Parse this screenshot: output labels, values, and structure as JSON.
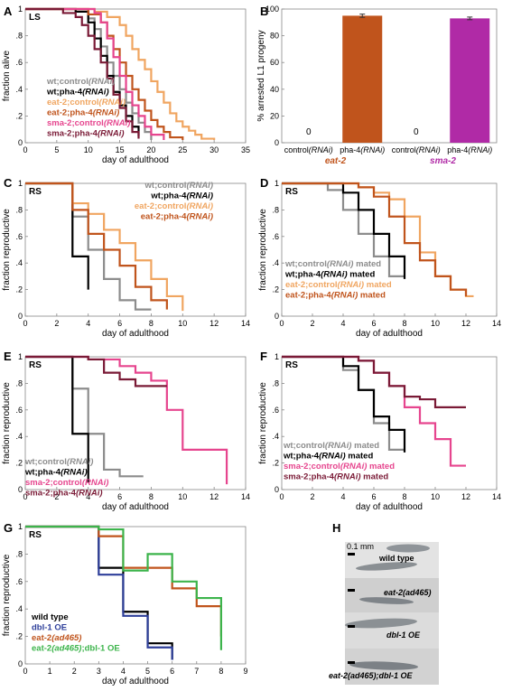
{
  "colors": {
    "wt_control": "#8c8c8c",
    "wt_pha4": "#000000",
    "eat2_control": "#f0a560",
    "eat2_pha4": "#c0541c",
    "sma2_control": "#e6458e",
    "sma2_pha4": "#7a1a36",
    "dbl1": "#2e3f9a",
    "eat2_dbl1": "#3cb44b"
  },
  "chart_data": [
    {
      "panel": "A",
      "type": "line",
      "tag": "LS",
      "xlabel": "day of adulthood",
      "ylabel": "fraction alive",
      "xlim": [
        0,
        35
      ],
      "ylim": [
        0,
        1
      ],
      "xticks": [
        "0",
        "5",
        "10",
        "15",
        "20",
        "25",
        "30",
        "35"
      ],
      "yticks": [
        "0",
        ".2",
        ".4",
        ".6",
        ".8",
        "1"
      ],
      "legend": [
        {
          "text": "wt;control(RNAi)",
          "color_key": "wt_control"
        },
        {
          "text": "wt;pha-4(RNAi)",
          "color_key": "wt_pha4"
        },
        {
          "text": "eat-2;control(RNAi)",
          "color_key": "eat2_control"
        },
        {
          "text": "eat-2;pha-4(RNAi)",
          "color_key": "eat2_pha4"
        },
        {
          "text": "sma-2;control(RNAi)",
          "color_key": "sma2_control"
        },
        {
          "text": "sma-2;pha-4(RNAi)",
          "color_key": "sma2_pha4"
        }
      ],
      "series": [
        {
          "color_key": "wt_control",
          "x": [
            0,
            8,
            10,
            11,
            12,
            13,
            14,
            15,
            16,
            17,
            18,
            19,
            20
          ],
          "y": [
            1,
            0.98,
            0.93,
            0.85,
            0.72,
            0.6,
            0.5,
            0.4,
            0.3,
            0.22,
            0.15,
            0.08,
            0.02
          ]
        },
        {
          "color_key": "wt_pha4",
          "x": [
            0,
            8,
            10,
            11,
            12,
            13,
            14,
            15,
            16,
            17,
            18
          ],
          "y": [
            1,
            0.98,
            0.9,
            0.78,
            0.65,
            0.5,
            0.38,
            0.28,
            0.2,
            0.12,
            0.05
          ]
        },
        {
          "color_key": "eat2_control",
          "x": [
            0,
            11,
            13,
            15,
            16,
            17,
            18,
            19,
            20,
            21,
            22,
            23,
            24,
            25,
            26,
            27,
            28,
            30
          ],
          "y": [
            1,
            0.98,
            0.94,
            0.88,
            0.8,
            0.7,
            0.62,
            0.55,
            0.46,
            0.38,
            0.3,
            0.22,
            0.16,
            0.12,
            0.09,
            0.06,
            0.03,
            0.02
          ]
        },
        {
          "color_key": "eat2_pha4",
          "x": [
            0,
            10,
            12,
            13,
            14,
            15,
            16,
            17,
            18,
            19,
            20,
            21,
            22,
            23,
            25
          ],
          "y": [
            1,
            0.96,
            0.9,
            0.8,
            0.7,
            0.6,
            0.5,
            0.4,
            0.32,
            0.24,
            0.17,
            0.12,
            0.08,
            0.04,
            0.02
          ]
        },
        {
          "color_key": "sma2_control",
          "x": [
            0,
            11,
            12,
            13,
            14,
            15,
            16,
            17,
            18,
            19,
            20,
            22
          ],
          "y": [
            1,
            0.97,
            0.9,
            0.78,
            0.64,
            0.5,
            0.38,
            0.28,
            0.2,
            0.12,
            0.06,
            0.02
          ]
        },
        {
          "color_key": "sma2_pha4",
          "x": [
            0,
            6,
            8,
            9,
            10,
            11,
            12,
            13,
            14,
            15,
            16,
            17,
            18
          ],
          "y": [
            1,
            0.97,
            0.94,
            0.88,
            0.8,
            0.7,
            0.6,
            0.48,
            0.36,
            0.26,
            0.16,
            0.08,
            0.03
          ]
        }
      ]
    },
    {
      "panel": "B",
      "type": "bar",
      "ylabel": "% arrested L1 progeny",
      "ylim": [
        0,
        100
      ],
      "yticks": [
        "0",
        "20",
        "40",
        "60",
        "80",
        "100"
      ],
      "categories": [
        "control(RNAi)",
        "pha-4(RNAi)",
        "control(RNAi)",
        "pha-4(RNAi)"
      ],
      "values": [
        0,
        95,
        0,
        93
      ],
      "errors": [
        0,
        1.2,
        0,
        1.0
      ],
      "zero_labels": [
        "0",
        "",
        "0",
        ""
      ],
      "bar_color_keys": [
        "eat2_pha4",
        "eat2_pha4",
        "sma2_control",
        "sma2_control"
      ],
      "groups": [
        {
          "label": "eat-2",
          "color": "#c0541c"
        },
        {
          "label": "sma-2",
          "color": "#b02aa6"
        }
      ],
      "bar_colors": [
        "#c0541c",
        "#c0541c",
        "#b02aa6",
        "#b02aa6"
      ]
    },
    {
      "panel": "C",
      "type": "line",
      "tag": "RS",
      "xlabel": "day of adulthood",
      "ylabel": "fraction reproductive",
      "xlim": [
        0,
        14
      ],
      "ylim": [
        0,
        1
      ],
      "xticks": [
        "0",
        "2",
        "4",
        "6",
        "8",
        "10",
        "12",
        "14"
      ],
      "yticks": [
        "0",
        ".2",
        ".4",
        ".6",
        ".8",
        "1"
      ],
      "legend": [
        {
          "text": "wt;control(RNAi)",
          "color_key": "wt_control"
        },
        {
          "text": "wt;pha-4(RNAi)",
          "color_key": "wt_pha4"
        },
        {
          "text": "eat-2;control(RNAi)",
          "color_key": "eat2_control"
        },
        {
          "text": "eat-2;pha-4(RNAi)",
          "color_key": "eat2_pha4"
        }
      ],
      "series": [
        {
          "color_key": "wt_control",
          "x": [
            0,
            3,
            4,
            5,
            6,
            7,
            8
          ],
          "y": [
            1,
            0.75,
            0.5,
            0.28,
            0.12,
            0.05,
            0.05
          ]
        },
        {
          "color_key": "wt_pha4",
          "x": [
            0,
            3,
            4
          ],
          "y": [
            1,
            0.45,
            0.2
          ]
        },
        {
          "color_key": "eat2_control",
          "x": [
            0,
            3,
            4,
            5,
            6,
            7,
            8,
            9,
            10
          ],
          "y": [
            1,
            0.85,
            0.77,
            0.65,
            0.55,
            0.42,
            0.28,
            0.15,
            0.04
          ]
        },
        {
          "color_key": "eat2_pha4",
          "x": [
            0,
            3,
            4,
            5,
            6,
            7,
            8,
            9
          ],
          "y": [
            1,
            0.8,
            0.62,
            0.5,
            0.38,
            0.22,
            0.12,
            0.05
          ]
        }
      ]
    },
    {
      "panel": "D",
      "type": "line",
      "tag": "RS",
      "xlabel": "day of adulthood",
      "ylabel": "fraction reproductive",
      "xlim": [
        0,
        14
      ],
      "ylim": [
        0,
        1
      ],
      "xticks": [
        "0",
        "2",
        "4",
        "6",
        "8",
        "10",
        "12",
        "14"
      ],
      "yticks": [
        "0",
        ".2",
        ".4",
        ".6",
        ".8",
        "1"
      ],
      "legend": [
        {
          "text": "wt;control(RNAi) mated",
          "color_key": "wt_control"
        },
        {
          "text": "wt;pha-4(RNAi) mated",
          "color_key": "wt_pha4"
        },
        {
          "text": "eat-2;control(RNAi) mated",
          "color_key": "eat2_control"
        },
        {
          "text": "eat-2;pha-4(RNAi) mated",
          "color_key": "eat2_pha4"
        }
      ],
      "series": [
        {
          "color_key": "wt_control",
          "x": [
            0,
            3,
            4,
            5,
            6,
            7,
            8
          ],
          "y": [
            1,
            0.95,
            0.8,
            0.62,
            0.45,
            0.3,
            0.3
          ]
        },
        {
          "color_key": "wt_pha4",
          "x": [
            0,
            4,
            5,
            6,
            7,
            8
          ],
          "y": [
            1,
            0.93,
            0.8,
            0.62,
            0.45,
            0.28
          ]
        },
        {
          "color_key": "eat2_control",
          "x": [
            0,
            5,
            6,
            7,
            8,
            9,
            10,
            11,
            12,
            12.5
          ],
          "y": [
            1,
            0.97,
            0.93,
            0.88,
            0.75,
            0.48,
            0.3,
            0.2,
            0.15,
            0.15
          ]
        },
        {
          "color_key": "eat2_pha4",
          "x": [
            0,
            5,
            6,
            7,
            8,
            9,
            10,
            11,
            12
          ],
          "y": [
            1,
            0.97,
            0.9,
            0.75,
            0.55,
            0.42,
            0.3,
            0.2,
            0.15
          ]
        }
      ]
    },
    {
      "panel": "E",
      "type": "line",
      "tag": "RS",
      "xlabel": "day of adulthood",
      "ylabel": "fraction reproductive",
      "xlim": [
        0,
        14
      ],
      "ylim": [
        0,
        1
      ],
      "xticks": [
        "0",
        "2",
        "4",
        "6",
        "8",
        "10",
        "12",
        "14"
      ],
      "yticks": [
        "0",
        ".2",
        ".4",
        ".6",
        ".8",
        "1"
      ],
      "legend": [
        {
          "text": "wt;control(RNAi)",
          "color_key": "wt_control"
        },
        {
          "text": "wt;pha-4(RNAi)",
          "color_key": "wt_pha4"
        },
        {
          "text": "sma-2;control(RNAi)",
          "color_key": "sma2_control"
        },
        {
          "text": "sma-2;pha-4(RNAi)",
          "color_key": "sma2_pha4"
        }
      ],
      "series": [
        {
          "color_key": "wt_control",
          "x": [
            0,
            3,
            4,
            5,
            6,
            7.5
          ],
          "y": [
            1,
            0.76,
            0.42,
            0.15,
            0.1,
            0.1
          ]
        },
        {
          "color_key": "wt_pha4",
          "x": [
            0,
            3,
            4
          ],
          "y": [
            1,
            0.42,
            0.05
          ]
        },
        {
          "color_key": "sma2_control",
          "x": [
            0,
            4,
            6,
            7,
            8,
            9,
            10,
            12.8
          ],
          "y": [
            1,
            0.98,
            0.93,
            0.88,
            0.82,
            0.6,
            0.3,
            0.04
          ]
        },
        {
          "color_key": "sma2_pha4",
          "x": [
            0,
            4,
            5,
            6,
            7,
            8,
            9
          ],
          "y": [
            1,
            0.98,
            0.88,
            0.83,
            0.78,
            0.78,
            0.78
          ]
        }
      ]
    },
    {
      "panel": "F",
      "type": "line",
      "tag": "RS",
      "xlabel": "day of adulthood",
      "ylabel": "fraction reproductive",
      "xlim": [
        0,
        14
      ],
      "ylim": [
        0,
        1
      ],
      "xticks": [
        "0",
        "2",
        "4",
        "6",
        "8",
        "10",
        "12",
        "14"
      ],
      "yticks": [
        "0",
        ".2",
        ".4",
        ".6",
        ".8",
        "1"
      ],
      "legend": [
        {
          "text": "wt;control(RNAi) mated",
          "color_key": "wt_control"
        },
        {
          "text": "wt;pha-4(RNAi) mated",
          "color_key": "wt_pha4"
        },
        {
          "text": "sma-2;control(RNAi) mated",
          "color_key": "sma2_control"
        },
        {
          "text": "sma-2;pha-4(RNAi) mated",
          "color_key": "sma2_pha4"
        }
      ],
      "series": [
        {
          "color_key": "wt_control",
          "x": [
            0,
            4,
            5,
            6,
            7,
            8
          ],
          "y": [
            1,
            0.9,
            0.75,
            0.5,
            0.3,
            0.3
          ]
        },
        {
          "color_key": "wt_pha4",
          "x": [
            0,
            4,
            5,
            6,
            7,
            8
          ],
          "y": [
            1,
            0.93,
            0.75,
            0.55,
            0.45,
            0.28
          ]
        },
        {
          "color_key": "sma2_control",
          "x": [
            0,
            5,
            6,
            7,
            8,
            9,
            10,
            11,
            12
          ],
          "y": [
            1,
            0.97,
            0.88,
            0.78,
            0.62,
            0.5,
            0.38,
            0.18,
            0.18
          ]
        },
        {
          "color_key": "sma2_pha4",
          "x": [
            0,
            5,
            6,
            7,
            8,
            9,
            10,
            11,
            12
          ],
          "y": [
            1,
            0.97,
            0.88,
            0.78,
            0.7,
            0.68,
            0.62,
            0.62,
            0.62
          ]
        }
      ]
    },
    {
      "panel": "G",
      "type": "line",
      "tag": "RS",
      "xlabel": "day of adulthood",
      "ylabel": "fraction reproductive",
      "xlim": [
        0,
        9
      ],
      "ylim": [
        0,
        1
      ],
      "xticks": [
        "0",
        "1",
        "2",
        "3",
        "4",
        "5",
        "6",
        "7",
        "8",
        "9"
      ],
      "yticks": [
        "0",
        ".2",
        ".4",
        ".6",
        ".8",
        "1"
      ],
      "legend": [
        {
          "text": "wild type",
          "color_key": "wt_pha4"
        },
        {
          "text": "dbl-1 OE",
          "color_key": "dbl1"
        },
        {
          "text": "eat-2(ad465)",
          "color_key": "eat2_pha4"
        },
        {
          "text": "eat-2(ad465);dbl-1 OE",
          "color_key": "eat2_dbl1"
        }
      ],
      "series": [
        {
          "color_key": "wt_pha4",
          "x": [
            0,
            3,
            4,
            5,
            6
          ],
          "y": [
            1,
            0.7,
            0.38,
            0.15,
            0.03
          ]
        },
        {
          "color_key": "dbl1",
          "x": [
            0,
            3,
            4,
            5,
            6
          ],
          "y": [
            1,
            0.65,
            0.35,
            0.12,
            0.03
          ]
        },
        {
          "color_key": "eat2_pha4",
          "x": [
            0,
            3,
            4,
            5,
            6,
            7,
            8
          ],
          "y": [
            1,
            0.93,
            0.7,
            0.7,
            0.55,
            0.42,
            0.2
          ]
        },
        {
          "color_key": "eat2_dbl1",
          "x": [
            0,
            3,
            4,
            5,
            6,
            7,
            8
          ],
          "y": [
            1,
            0.98,
            0.68,
            0.8,
            0.6,
            0.48,
            0.1
          ]
        }
      ]
    }
  ],
  "panels": {
    "A": "A",
    "B": "B",
    "C": "C",
    "D": "D",
    "E": "E",
    "F": "F",
    "G": "G",
    "H": "H"
  },
  "panel_h": {
    "scale_label": "0.1 mm",
    "labels": [
      "wild type",
      "eat-2(ad465)",
      "dbl-1 OE",
      "eat-2(ad465);dbl-1 OE"
    ]
  }
}
